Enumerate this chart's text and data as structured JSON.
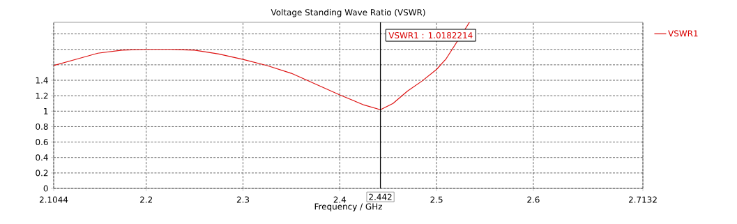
{
  "chart_data": {
    "type": "line",
    "title": "Voltage Standing Wave Ratio (VSWR)",
    "xlabel": "Frequency / GHz",
    "x": [
      2.1044,
      2.13,
      2.15,
      2.175,
      2.2,
      2.225,
      2.25,
      2.275,
      2.3,
      2.325,
      2.35,
      2.375,
      2.4,
      2.425,
      2.442,
      2.455,
      2.47,
      2.485,
      2.5,
      2.51,
      2.534
    ],
    "series": [
      {
        "name": "VSWR1",
        "color": "#dd1111",
        "values": [
          1.59,
          1.68,
          1.75,
          1.79,
          1.8,
          1.8,
          1.79,
          1.74,
          1.67,
          1.59,
          1.49,
          1.35,
          1.21,
          1.08,
          1.0182214,
          1.1,
          1.26,
          1.39,
          1.54,
          1.68,
          2.15
        ]
      }
    ],
    "xlim": [
      2.1044,
      2.7132
    ],
    "ylim": [
      0,
      2.15
    ],
    "xticks": [
      2.1044,
      2.2,
      2.3,
      2.4,
      2.5,
      2.6,
      2.7132
    ],
    "yticks": [
      0,
      0.2,
      0.4,
      0.6,
      0.8,
      1,
      1.2,
      1.4,
      {
        "value": 1.6,
        "label": null
      },
      {
        "value": 1.8,
        "label": null
      },
      {
        "value": 2,
        "label": null
      }
    ],
    "ref_lines": [
      {
        "axis": "x",
        "value": 2.442,
        "label": "2.442",
        "color": "#000000"
      }
    ],
    "annotations": [
      "VSWR1 : 1.0182214"
    ],
    "grid": true,
    "legend": "top right",
    "marker": "none",
    "line_style": "solid"
  }
}
